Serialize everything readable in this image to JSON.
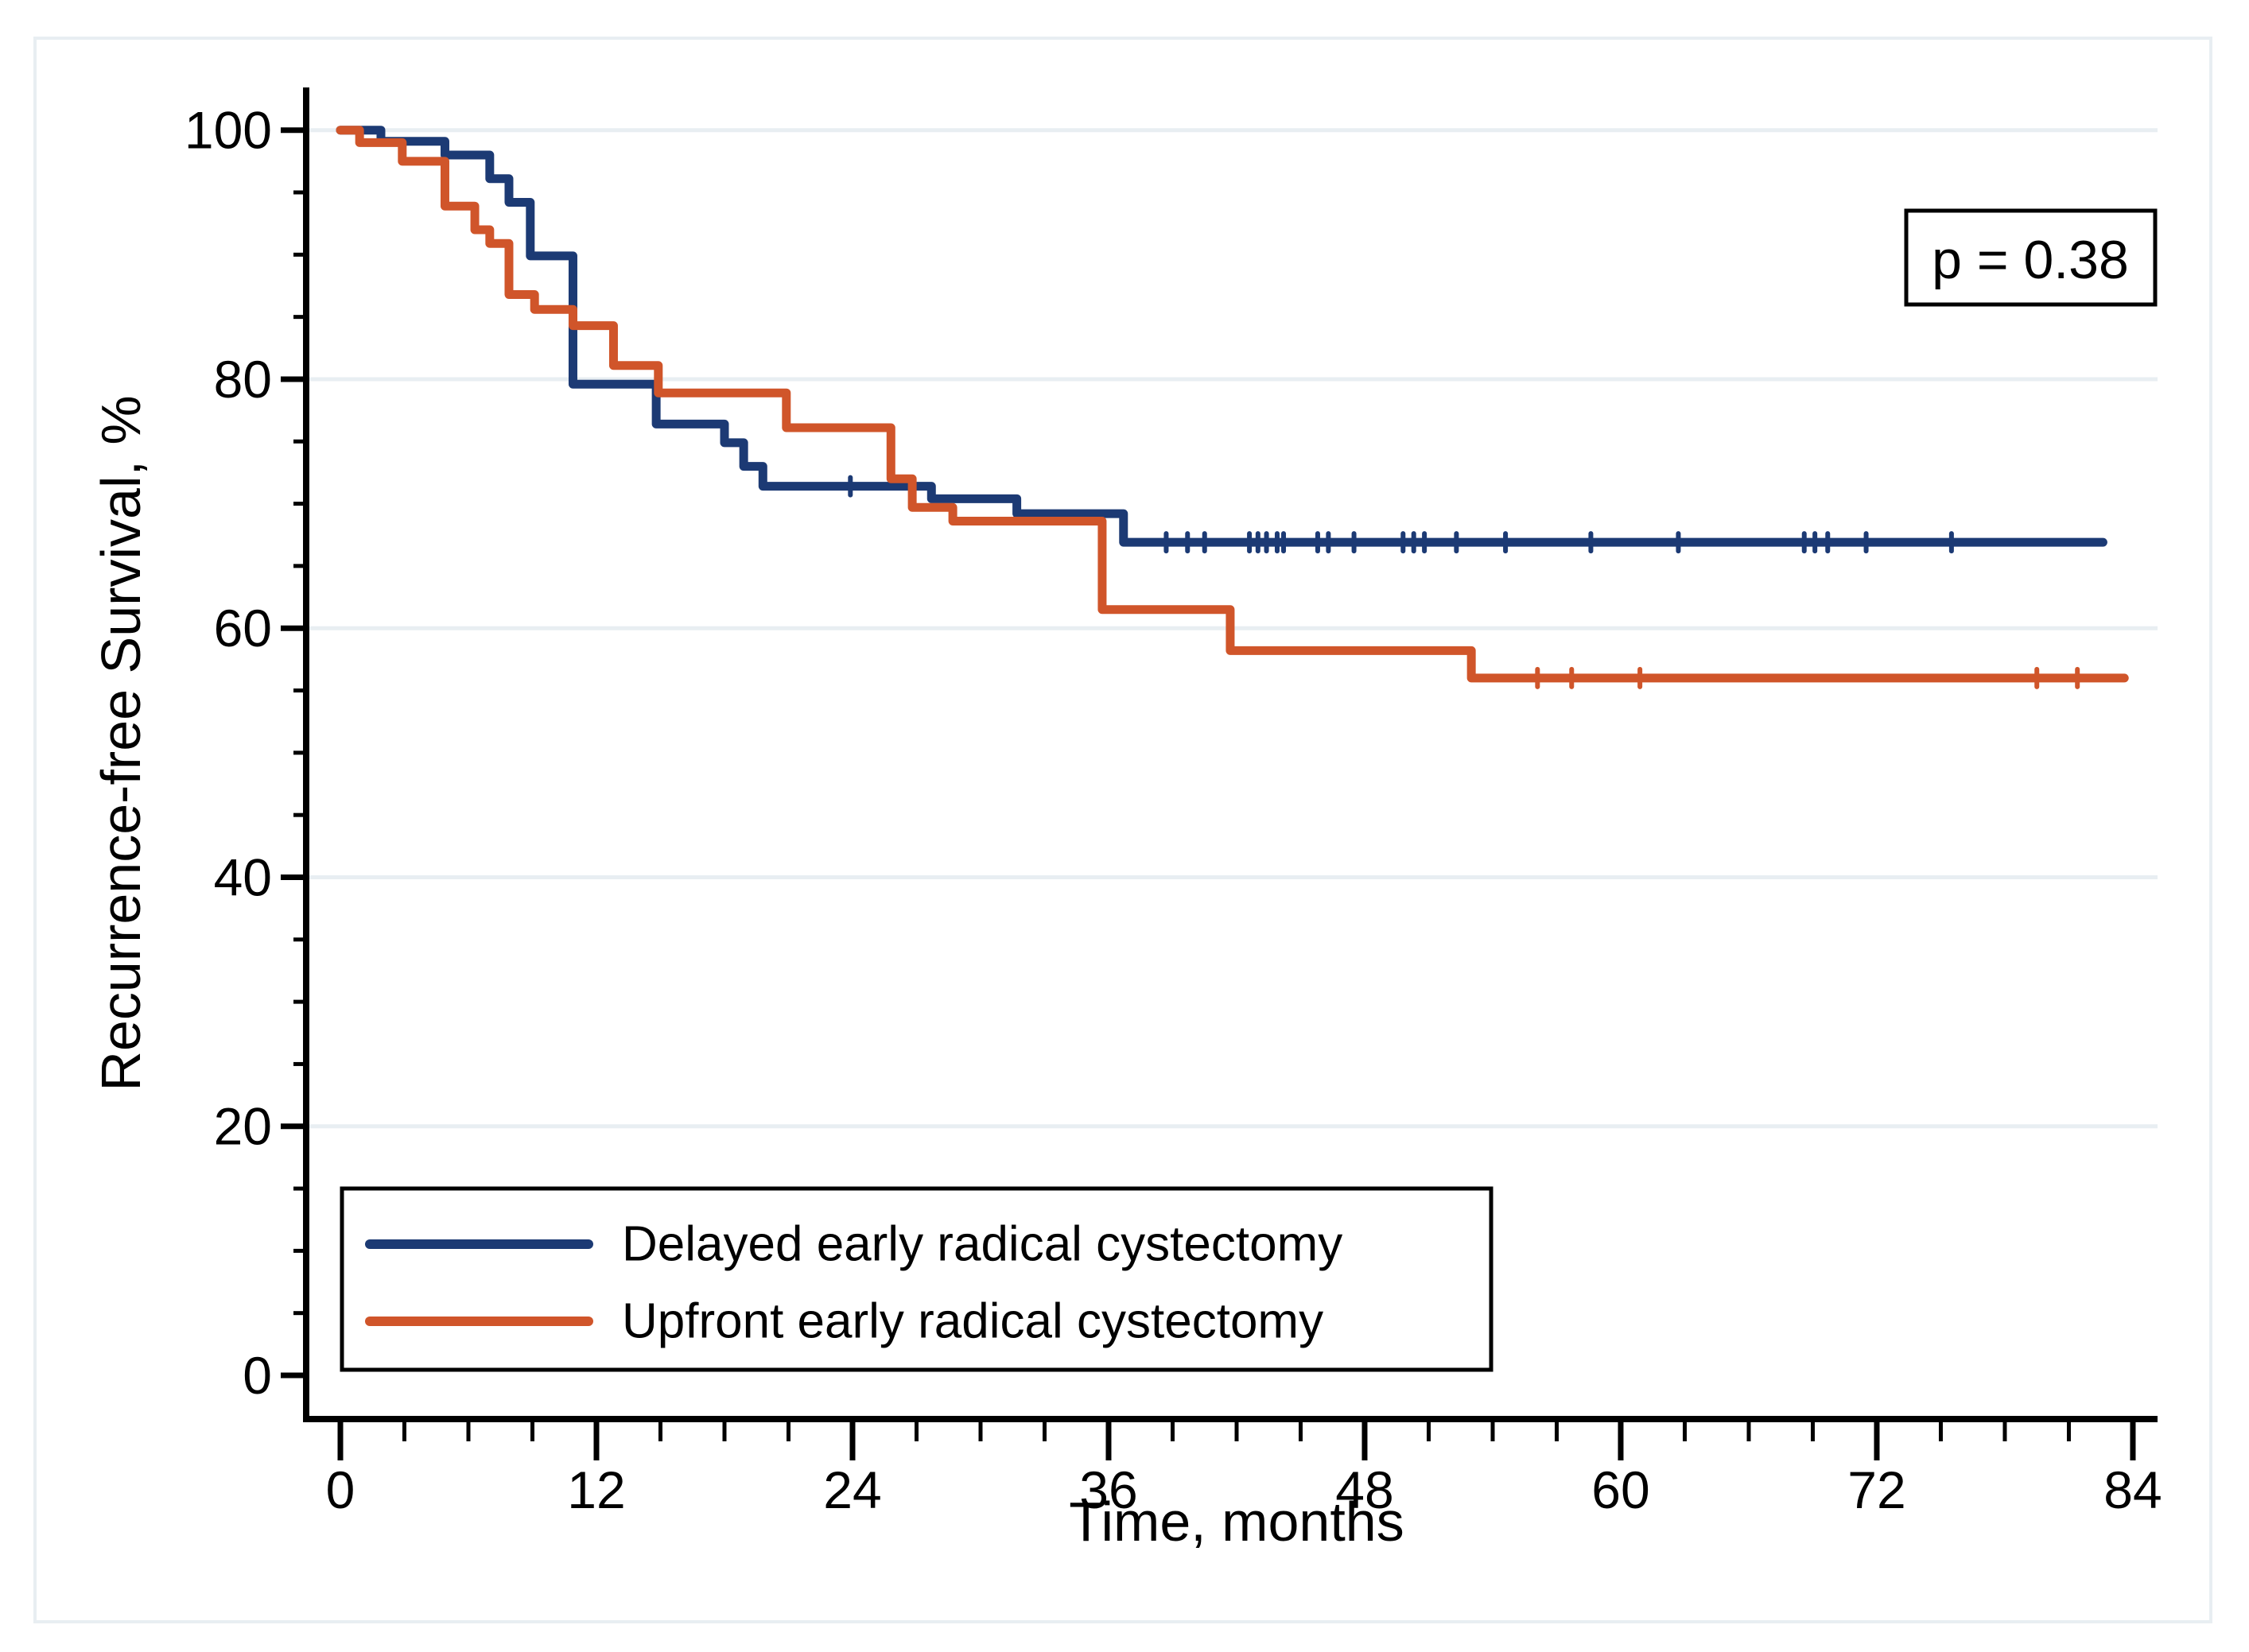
{
  "figure": {
    "background": "#ffffff",
    "border_color": "#e8eef2",
    "axis_color": "#000000",
    "grid_color": "#e8eef2"
  },
  "annotation": {
    "p_value_text": "p = 0.38"
  },
  "chart_data": {
    "type": "line",
    "subtype": "kaplan-meier-step",
    "title": "",
    "xlabel": "Time, months",
    "ylabel": "Recurrence-free Survival, %",
    "xlim": [
      0,
      84
    ],
    "ylim": [
      0,
      100
    ],
    "x_major_ticks": [
      0,
      12,
      24,
      36,
      48,
      60,
      72,
      84
    ],
    "x_minor_step": 3,
    "y_major_ticks": [
      0,
      20,
      40,
      60,
      80,
      100
    ],
    "y_minor_step": 5,
    "grid": "horizontal-major-only",
    "legend_position": "bottom-left",
    "series": [
      {
        "name": "Delayed early radical cystectomy",
        "color": "#1c3a74",
        "steps": [
          [
            0,
            100
          ],
          [
            1.9,
            99.1
          ],
          [
            4.9,
            98.0
          ],
          [
            7.0,
            96.1
          ],
          [
            7.9,
            94.2
          ],
          [
            8.9,
            89.9
          ],
          [
            10.9,
            79.6
          ],
          [
            14.8,
            76.4
          ],
          [
            18.0,
            74.9
          ],
          [
            18.9,
            73.0
          ],
          [
            19.8,
            71.4
          ],
          [
            27.7,
            70.4
          ],
          [
            31.7,
            69.2
          ],
          [
            36.7,
            66.9
          ]
        ],
        "end_month": 82.6,
        "final_value": 66.9,
        "censor_marks_months": [
          23.9,
          38.7,
          39.7,
          40.5,
          42.6,
          43.0,
          43.4,
          43.9,
          44.2,
          45.8,
          46.3,
          47.5,
          49.8,
          50.3,
          50.8,
          52.3,
          54.6,
          58.6,
          62.7,
          68.6,
          69.1,
          69.7,
          71.5,
          75.5
        ]
      },
      {
        "name": "Upfront early radical cystectomy",
        "color": "#d0552a",
        "steps": [
          [
            0,
            100
          ],
          [
            0.9,
            99.0
          ],
          [
            2.9,
            97.5
          ],
          [
            4.9,
            93.9
          ],
          [
            6.3,
            92.0
          ],
          [
            7.0,
            90.9
          ],
          [
            7.9,
            86.8
          ],
          [
            9.1,
            85.6
          ],
          [
            10.9,
            84.3
          ],
          [
            12.8,
            81.1
          ],
          [
            14.9,
            78.9
          ],
          [
            20.9,
            76.1
          ],
          [
            25.8,
            72.0
          ],
          [
            26.8,
            69.7
          ],
          [
            28.7,
            68.6
          ],
          [
            35.7,
            61.5
          ],
          [
            41.7,
            58.2
          ],
          [
            53.0,
            56.0
          ]
        ],
        "end_month": 83.6,
        "final_value": 56.0,
        "censor_marks_months": [
          56.1,
          57.7,
          60.9,
          79.5,
          81.4
        ]
      }
    ]
  }
}
